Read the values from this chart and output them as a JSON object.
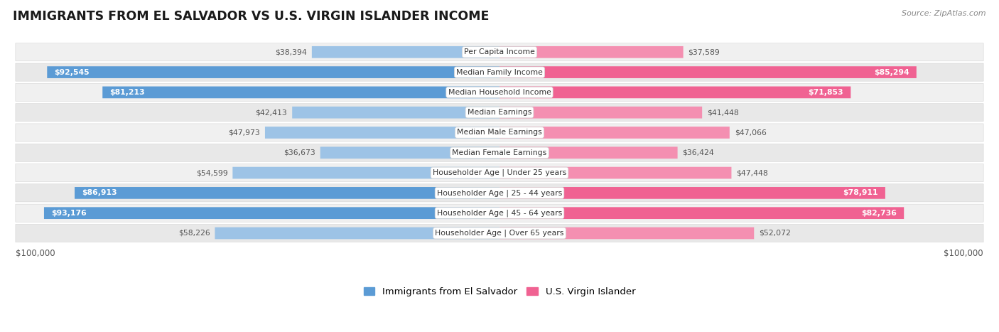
{
  "title": "IMMIGRANTS FROM EL SALVADOR VS U.S. VIRGIN ISLANDER INCOME",
  "source": "Source: ZipAtlas.com",
  "categories": [
    "Per Capita Income",
    "Median Family Income",
    "Median Household Income",
    "Median Earnings",
    "Median Male Earnings",
    "Median Female Earnings",
    "Householder Age | Under 25 years",
    "Householder Age | 25 - 44 years",
    "Householder Age | 45 - 64 years",
    "Householder Age | Over 65 years"
  ],
  "el_salvador_values": [
    38394,
    92545,
    81213,
    42413,
    47973,
    36673,
    54599,
    86913,
    93176,
    58226
  ],
  "virgin_islander_values": [
    37589,
    85294,
    71853,
    41448,
    47066,
    36424,
    47448,
    78911,
    82736,
    52072
  ],
  "el_salvador_dark": [
    false,
    true,
    true,
    false,
    false,
    false,
    false,
    true,
    true,
    false
  ],
  "virgin_islander_dark": [
    false,
    true,
    true,
    false,
    false,
    false,
    false,
    true,
    true,
    false
  ],
  "max_value": 100000,
  "el_salvador_color_dark": "#5B9BD5",
  "el_salvador_color_light": "#9DC3E6",
  "virgin_islander_color_dark": "#F06292",
  "virgin_islander_color_light": "#F48FB1",
  "row_bg_even": "#f0f0f0",
  "row_bg_odd": "#e8e8e8",
  "label_bg": "#ffffff",
  "label_border": "#d0d0d0",
  "text_dark": "#333333",
  "text_light": "#ffffff",
  "text_outside": "#555555",
  "legend_blue": "#5B9BD5",
  "legend_pink": "#F06292",
  "bottom_label_color": "#555555"
}
